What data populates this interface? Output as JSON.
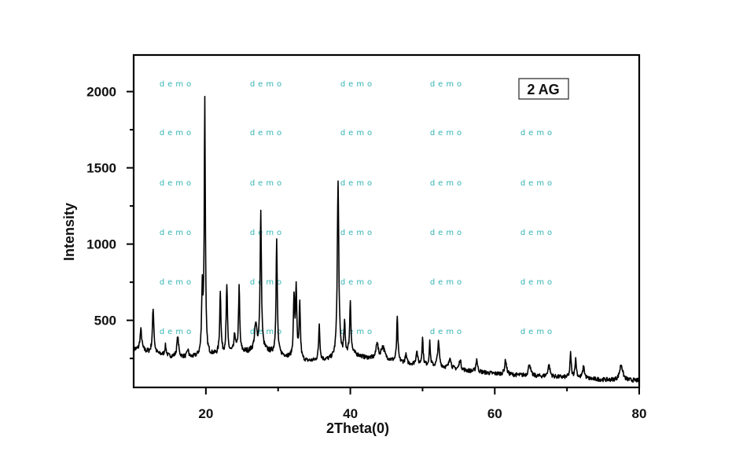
{
  "chart_data": {
    "type": "line",
    "title": "",
    "xlabel": "2Theta(0)",
    "ylabel": "Intensity",
    "xlim": [
      10,
      80
    ],
    "ylim": [
      60,
      2240
    ],
    "x_ticks": [
      20,
      40,
      60,
      80
    ],
    "x_tick_labels": [
      "20",
      "40",
      "60",
      "80"
    ],
    "x_minor_ticks": [
      30,
      50,
      70
    ],
    "y_ticks": [
      500,
      1000,
      1500,
      2000
    ],
    "y_tick_labels": [
      "500",
      "1000",
      "1500",
      "2000"
    ],
    "y_minor_ticks": [
      250,
      750,
      1250,
      1750
    ],
    "grid": false,
    "legend": {
      "label": "2 AG",
      "placement": "top-right"
    },
    "series": [
      {
        "name": "2 AG",
        "color": "#000000",
        "baseline": [
          [
            10,
            310
          ],
          [
            12,
            290
          ],
          [
            15,
            262
          ],
          [
            18,
            255
          ],
          [
            20,
            268
          ],
          [
            25,
            290
          ],
          [
            28,
            300
          ],
          [
            31,
            262
          ],
          [
            34,
            230
          ],
          [
            37,
            240
          ],
          [
            40,
            285
          ],
          [
            42,
            255
          ],
          [
            45,
            240
          ],
          [
            48,
            215
          ],
          [
            52,
            195
          ],
          [
            56,
            170
          ],
          [
            60,
            150
          ],
          [
            65,
            135
          ],
          [
            70,
            125
          ],
          [
            75,
            110
          ],
          [
            80,
            105
          ]
        ],
        "peaks": [
          {
            "two_theta": 11.0,
            "intensity": 435,
            "fwhm": 0.3
          },
          {
            "two_theta": 12.7,
            "intensity": 570,
            "fwhm": 0.25
          },
          {
            "two_theta": 14.4,
            "intensity": 330,
            "fwhm": 0.25
          },
          {
            "two_theta": 16.1,
            "intensity": 385,
            "fwhm": 0.3
          },
          {
            "two_theta": 17.5,
            "intensity": 305,
            "fwhm": 0.25
          },
          {
            "two_theta": 19.5,
            "intensity": 700,
            "fwhm": 0.2
          },
          {
            "two_theta": 19.85,
            "intensity": 1935,
            "fwhm": 0.18
          },
          {
            "two_theta": 22.0,
            "intensity": 690,
            "fwhm": 0.2
          },
          {
            "two_theta": 22.9,
            "intensity": 725,
            "fwhm": 0.2
          },
          {
            "two_theta": 24.0,
            "intensity": 400,
            "fwhm": 0.25
          },
          {
            "two_theta": 24.6,
            "intensity": 710,
            "fwhm": 0.2
          },
          {
            "two_theta": 26.9,
            "intensity": 460,
            "fwhm": 0.4
          },
          {
            "two_theta": 27.6,
            "intensity": 1195,
            "fwhm": 0.22
          },
          {
            "two_theta": 29.8,
            "intensity": 1030,
            "fwhm": 0.2
          },
          {
            "two_theta": 32.2,
            "intensity": 640,
            "fwhm": 0.2
          },
          {
            "two_theta": 32.5,
            "intensity": 705,
            "fwhm": 0.2
          },
          {
            "two_theta": 33.0,
            "intensity": 600,
            "fwhm": 0.2
          },
          {
            "two_theta": 35.7,
            "intensity": 475,
            "fwhm": 0.2
          },
          {
            "two_theta": 38.3,
            "intensity": 1405,
            "fwhm": 0.25
          },
          {
            "two_theta": 39.2,
            "intensity": 470,
            "fwhm": 0.2
          },
          {
            "two_theta": 40.0,
            "intensity": 625,
            "fwhm": 0.2
          },
          {
            "two_theta": 43.7,
            "intensity": 355,
            "fwhm": 0.3
          },
          {
            "two_theta": 44.5,
            "intensity": 325,
            "fwhm": 0.6
          },
          {
            "two_theta": 46.5,
            "intensity": 515,
            "fwhm": 0.2
          },
          {
            "two_theta": 47.7,
            "intensity": 270,
            "fwhm": 0.25
          },
          {
            "two_theta": 49.2,
            "intensity": 300,
            "fwhm": 0.25
          },
          {
            "two_theta": 50.0,
            "intensity": 380,
            "fwhm": 0.2
          },
          {
            "two_theta": 51.0,
            "intensity": 350,
            "fwhm": 0.2
          },
          {
            "two_theta": 52.2,
            "intensity": 350,
            "fwhm": 0.3
          },
          {
            "two_theta": 53.8,
            "intensity": 260,
            "fwhm": 0.3
          },
          {
            "two_theta": 55.2,
            "intensity": 240,
            "fwhm": 0.3
          },
          {
            "two_theta": 57.5,
            "intensity": 245,
            "fwhm": 0.25
          },
          {
            "two_theta": 61.5,
            "intensity": 240,
            "fwhm": 0.3
          },
          {
            "two_theta": 64.8,
            "intensity": 215,
            "fwhm": 0.35
          },
          {
            "two_theta": 67.5,
            "intensity": 205,
            "fwhm": 0.35
          },
          {
            "two_theta": 70.5,
            "intensity": 280,
            "fwhm": 0.2
          },
          {
            "two_theta": 71.2,
            "intensity": 240,
            "fwhm": 0.25
          },
          {
            "two_theta": 72.3,
            "intensity": 195,
            "fwhm": 0.3
          },
          {
            "two_theta": 77.5,
            "intensity": 210,
            "fwhm": 0.5
          }
        ]
      }
    ]
  },
  "watermark": "demo"
}
